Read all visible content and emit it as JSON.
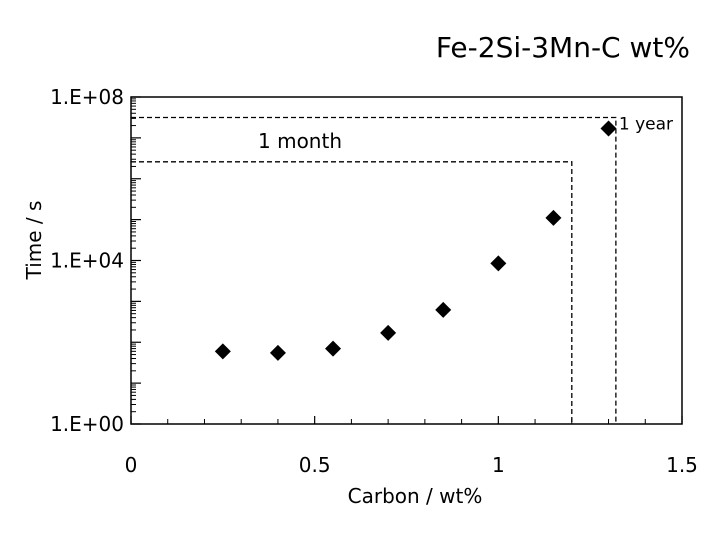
{
  "chart_data": {
    "type": "scatter",
    "title": "Fe-2Si-3Mn-C wt%",
    "title_color": "#3a3aa8",
    "xlabel": "Carbon / wt%",
    "ylabel": "Time / s",
    "xlim": [
      0,
      1.5
    ],
    "ylim": [
      1,
      100000000
    ],
    "y_scale": "log",
    "x_ticks": [
      {
        "value": 0,
        "label": "0"
      },
      {
        "value": 0.5,
        "label": "0.5"
      },
      {
        "value": 1,
        "label": "1"
      },
      {
        "value": 1.5,
        "label": "1.5"
      }
    ],
    "y_ticks": [
      {
        "value": 1,
        "label": "1.E+00"
      },
      {
        "value": 10000,
        "label": "1.E+04"
      },
      {
        "value": 100000000,
        "label": "1.E+08"
      }
    ],
    "grid": false,
    "legend": "none",
    "marker": "diamond",
    "points": [
      {
        "x": 0.25,
        "y": 60
      },
      {
        "x": 0.4,
        "y": 55
      },
      {
        "x": 0.55,
        "y": 70
      },
      {
        "x": 0.7,
        "y": 170
      },
      {
        "x": 0.85,
        "y": 620
      },
      {
        "x": 1.0,
        "y": 8500
      },
      {
        "x": 1.15,
        "y": 110000
      },
      {
        "x": 1.3,
        "y": 17000000
      }
    ],
    "reference_lines": [
      {
        "label": "1 month",
        "y": 2600000,
        "x": 1.2
      },
      {
        "label": "1 year",
        "y": 31500000,
        "x": 1.32
      }
    ]
  }
}
